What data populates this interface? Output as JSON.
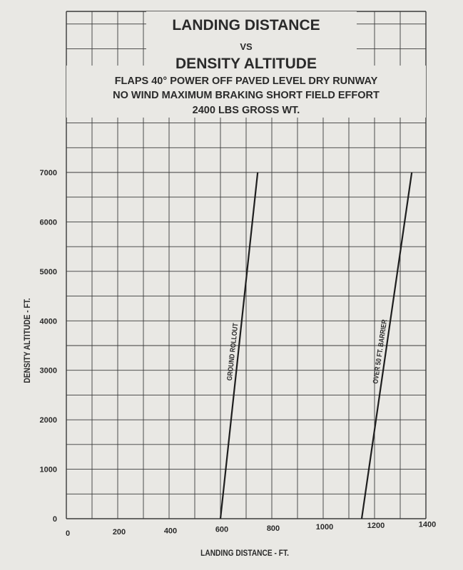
{
  "chart_data": {
    "type": "line",
    "title": "LANDING DISTANCE",
    "title_vs": "VS",
    "title_line2": "DENSITY ALTITUDE",
    "conditions": [
      "FLAPS 40°   POWER OFF   PAVED LEVEL DRY RUNWAY",
      "NO WIND   MAXIMUM BRAKING   SHORT FIELD EFFORT",
      "2400 LBS GROSS WT."
    ],
    "xlabel": "LANDING DISTANCE - FT.",
    "ylabel": "DENSITY ALTITUDE - FT.",
    "xlim": [
      0,
      1400
    ],
    "ylim": [
      0,
      7000
    ],
    "xticks": [
      "0",
      "200",
      "400",
      "600",
      "800",
      "1000",
      "1200",
      "1400"
    ],
    "yticks": [
      "0",
      "1000",
      "2000",
      "3000",
      "4000",
      "5000",
      "6000",
      "7000"
    ],
    "grid": true,
    "x_grid_step": 100,
    "y_grid_step": 500,
    "series": [
      {
        "name": "GROUND ROLLOUT",
        "x": [
          600,
          745
        ],
        "y": [
          0,
          7000
        ]
      },
      {
        "name": "OVER 50 FT. BARRIER",
        "x": [
          1150,
          1345
        ],
        "y": [
          0,
          7000
        ]
      }
    ],
    "line_color": "#1e1e1e",
    "grid_color": "#3a3a3a",
    "paper_color": "#e9e8e4"
  }
}
